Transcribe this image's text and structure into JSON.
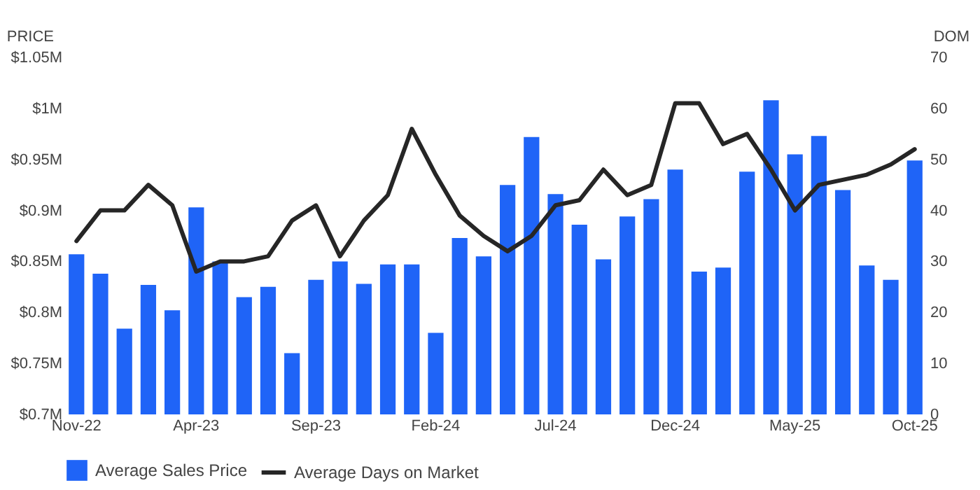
{
  "chart_data": {
    "type": "bar",
    "ylabel": "PRICE",
    "y2label": "DOM",
    "categories": [
      "Nov-22",
      null,
      null,
      null,
      null,
      "Apr-23",
      null,
      null,
      null,
      null,
      "Sep-23",
      null,
      null,
      null,
      null,
      "Feb-24",
      null,
      null,
      null,
      null,
      "Jul-24",
      null,
      null,
      null,
      null,
      "Dec-24",
      null,
      null,
      null,
      null,
      "May-25",
      null,
      null,
      null,
      null,
      "Oct-25"
    ],
    "series": [
      {
        "name": "Average Sales Price",
        "type": "bar",
        "color": "#1f64f7",
        "values": [
          857000,
          838000,
          784000,
          827000,
          802000,
          903000,
          850000,
          815000,
          825000,
          760000,
          832000,
          850000,
          828000,
          847000,
          847000,
          780000,
          873000,
          855000,
          925000,
          972000,
          916000,
          886000,
          852000,
          894000,
          911000,
          940000,
          840000,
          844000,
          938000,
          1008000,
          955000,
          973000,
          920000,
          846000,
          832000,
          949000
        ]
      },
      {
        "name": "Average Days on Market",
        "type": "line",
        "axis": "y2",
        "color": "#262626",
        "values": [
          34,
          40,
          40,
          45,
          41,
          28,
          30,
          30,
          31,
          38,
          41,
          31,
          38,
          43,
          56,
          47,
          39,
          35,
          32,
          35,
          41,
          42,
          48,
          43,
          45,
          61,
          61,
          53,
          55,
          48,
          40,
          45,
          46,
          47,
          49,
          52
        ]
      }
    ],
    "ylim": [
      700000,
      1050000
    ],
    "yticks": [
      {
        "value": 700000,
        "label": "$0.7M"
      },
      {
        "value": 750000,
        "label": "$0.75M"
      },
      {
        "value": 800000,
        "label": "$0.8M"
      },
      {
        "value": 850000,
        "label": "$0.85M"
      },
      {
        "value": 900000,
        "label": "$0.9M"
      },
      {
        "value": 950000,
        "label": "$0.95M"
      },
      {
        "value": 1000000,
        "label": "$1M"
      },
      {
        "value": 1050000,
        "label": "$1.05M"
      }
    ],
    "y2lim": [
      0,
      70
    ],
    "y2ticks": [
      0,
      10,
      20,
      30,
      40,
      50,
      60,
      70
    ],
    "legend": "bottom",
    "grid": false
  }
}
